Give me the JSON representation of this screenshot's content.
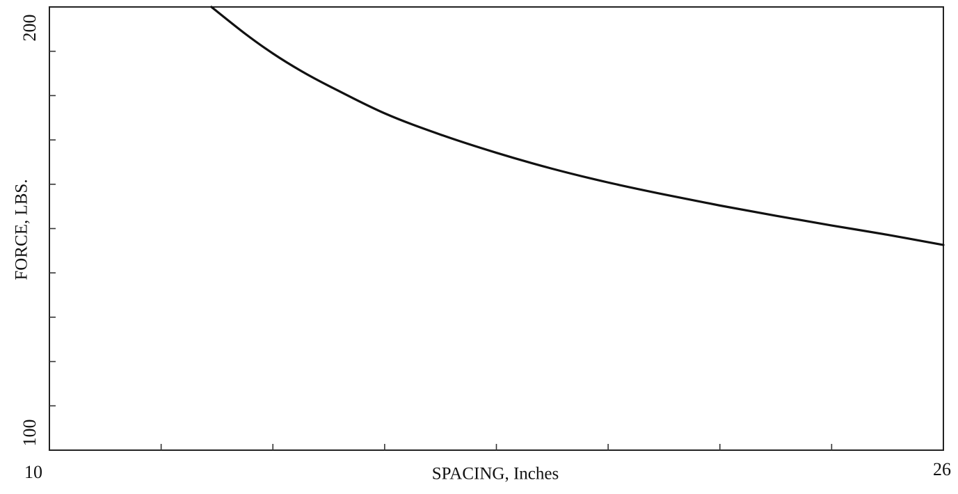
{
  "chart_data": {
    "type": "line",
    "title": "",
    "xlabel": "SPACING, Inches",
    "ylabel": "FORCE, LBS.",
    "xlim": [
      10,
      26
    ],
    "ylim": [
      100,
      200
    ],
    "x_tick_labels": [
      "10",
      "26"
    ],
    "y_tick_labels": [
      "100",
      "200"
    ],
    "x_minor_ticks": [
      12,
      14,
      16,
      18,
      20,
      22,
      24
    ],
    "y_minor_ticks": [
      110,
      120,
      130,
      140,
      150,
      160,
      170,
      180,
      190
    ],
    "grid": false,
    "legend": "none",
    "line_color": "#111111",
    "series": [
      {
        "x": [
          12.9,
          13.5,
          14.0,
          14.5,
          15.0,
          16.0,
          17.0,
          18.0,
          19.0,
          20.0,
          21.0,
          22.0,
          23.0,
          24.0,
          25.0,
          26.0
        ],
        "values": [
          200.0,
          194.0,
          189.5,
          185.6,
          182.2,
          176.0,
          171.2,
          167.1,
          163.5,
          160.4,
          157.7,
          155.2,
          152.9,
          150.7,
          148.6,
          146.3
        ]
      }
    ]
  }
}
